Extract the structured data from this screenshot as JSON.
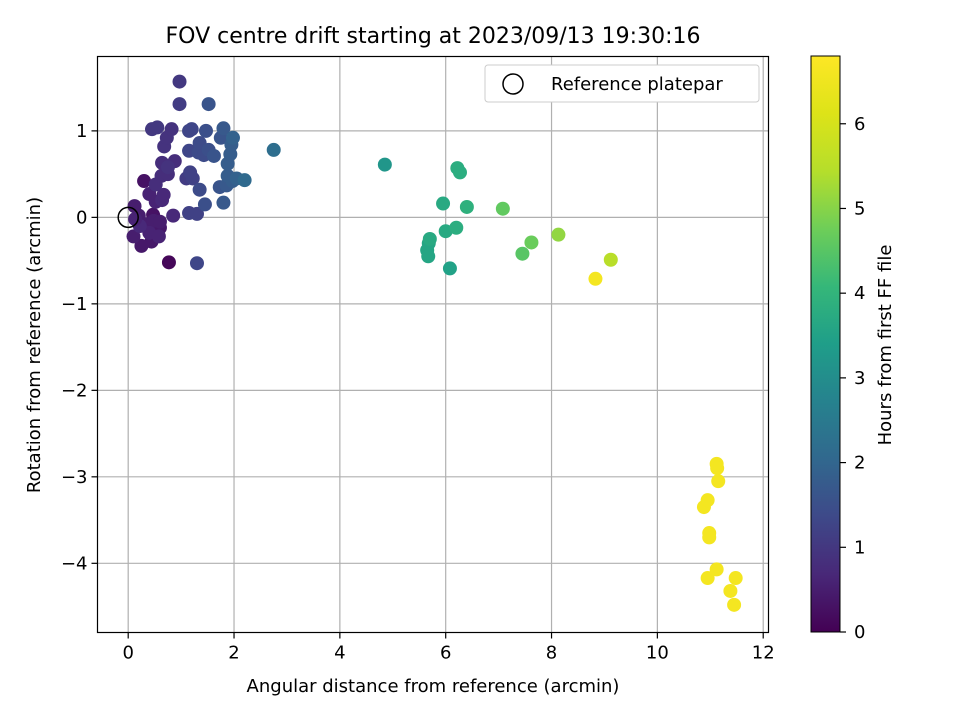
{
  "chart_data": {
    "type": "scatter",
    "title": "FOV centre drift starting at 2023/09/13 19:30:16",
    "xlabel": "Angular distance from reference (arcmin)",
    "ylabel": "Rotation from reference (arcmin)",
    "xlim": [
      -0.58,
      12.1
    ],
    "ylim": [
      -4.8,
      1.86
    ],
    "xticks": [
      0,
      2,
      4,
      6,
      8,
      10,
      12
    ],
    "yticks": [
      -4,
      -3,
      -2,
      -1,
      0,
      1
    ],
    "xtick_labels": [
      "0",
      "2",
      "4",
      "6",
      "8",
      "10",
      "12"
    ],
    "ytick_labels": [
      "−4",
      "−3",
      "−2",
      "−1",
      "0",
      "1"
    ],
    "grid": true,
    "colormap": "viridis",
    "colorbar": {
      "label": "Hours from first FF file",
      "range": [
        0,
        6.8
      ],
      "ticks": [
        0,
        1,
        2,
        3,
        4,
        5,
        6
      ],
      "tick_labels": [
        "0",
        "1",
        "2",
        "3",
        "4",
        "5",
        "6"
      ]
    },
    "legend": {
      "position": "top-right",
      "label": "Reference platepar"
    },
    "reference_point": {
      "x": 0,
      "y": 0
    },
    "series": [
      {
        "points": [
          [
            0.77,
            -0.52,
            0.1
          ],
          [
            0.3,
            0.42,
            0.3
          ],
          [
            0.47,
            0.03,
            0.3
          ],
          [
            0.55,
            -0.09,
            0.3
          ],
          [
            0.6,
            -0.12,
            0.4
          ],
          [
            0.44,
            -0.28,
            0.4
          ],
          [
            0.25,
            -0.33,
            0.4
          ],
          [
            0.1,
            -0.22,
            0.5
          ],
          [
            0.12,
            0.13,
            0.5
          ],
          [
            0.2,
            0.02,
            0.5
          ],
          [
            0.35,
            -0.08,
            0.5
          ],
          [
            0.48,
            -0.04,
            0.5
          ],
          [
            0.6,
            -0.05,
            0.5
          ],
          [
            0.4,
            0.27,
            0.6
          ],
          [
            0.52,
            0.18,
            0.6
          ],
          [
            0.4,
            -0.18,
            0.6
          ],
          [
            0.58,
            -0.22,
            0.6
          ],
          [
            0.22,
            -0.1,
            0.7
          ],
          [
            0.13,
            -0.02,
            0.6
          ],
          [
            0.64,
            0.2,
            0.7
          ],
          [
            0.85,
            0.02,
            0.7
          ],
          [
            0.67,
            0.26,
            0.7
          ],
          [
            0.52,
            0.38,
            0.8
          ],
          [
            0.63,
            0.48,
            0.8
          ],
          [
            0.64,
            0.63,
            0.8
          ],
          [
            0.75,
            0.5,
            0.8
          ],
          [
            0.88,
            0.65,
            0.8
          ],
          [
            0.75,
            0.58,
            0.9
          ],
          [
            0.68,
            0.82,
            0.9
          ],
          [
            0.73,
            0.92,
            0.9
          ],
          [
            0.82,
            1.02,
            0.9
          ],
          [
            0.55,
            1.04,
            1.0
          ],
          [
            0.45,
            1.02,
            1.0
          ],
          [
            0.97,
            1.57,
            1.0
          ],
          [
            0.97,
            1.31,
            1.1
          ],
          [
            1.1,
            0.45,
            1.1
          ],
          [
            1.15,
            0.05,
            1.2
          ],
          [
            1.3,
            0.04,
            1.2
          ],
          [
            1.22,
            0.45,
            1.2
          ],
          [
            1.17,
            0.52,
            1.2
          ],
          [
            1.15,
            0.77,
            1.3
          ],
          [
            1.15,
            1.0,
            1.3
          ],
          [
            1.2,
            1.02,
            1.3
          ],
          [
            1.3,
            -0.53,
            1.3
          ],
          [
            1.35,
            0.32,
            1.4
          ],
          [
            1.33,
            0.75,
            1.4
          ],
          [
            1.43,
            0.72,
            1.4
          ],
          [
            1.35,
            0.86,
            1.4
          ],
          [
            1.47,
            1.0,
            1.5
          ],
          [
            1.45,
            0.15,
            1.5
          ],
          [
            1.52,
            0.78,
            1.5
          ],
          [
            1.52,
            1.31,
            1.6
          ],
          [
            1.62,
            0.71,
            1.6
          ],
          [
            1.73,
            0.35,
            1.6
          ],
          [
            1.75,
            0.92,
            1.6
          ],
          [
            1.8,
            1.03,
            1.7
          ],
          [
            1.8,
            0.17,
            1.7
          ],
          [
            1.86,
            0.37,
            1.7
          ],
          [
            1.88,
            0.48,
            1.8
          ],
          [
            1.88,
            0.62,
            1.8
          ],
          [
            1.93,
            0.73,
            1.8
          ],
          [
            1.97,
            0.42,
            1.8
          ],
          [
            1.95,
            0.84,
            1.8
          ],
          [
            1.98,
            0.92,
            1.9
          ],
          [
            2.05,
            0.45,
            1.9
          ],
          [
            2.2,
            0.43,
            2.1
          ],
          [
            2.75,
            0.78,
            2.2
          ],
          [
            4.85,
            0.61,
            3.2
          ],
          [
            5.65,
            -0.38,
            3.6
          ],
          [
            5.68,
            -0.3,
            3.6
          ],
          [
            5.7,
            -0.25,
            3.7
          ],
          [
            5.67,
            -0.45,
            3.6
          ],
          [
            5.95,
            0.16,
            3.7
          ],
          [
            6.0,
            -0.16,
            3.7
          ],
          [
            6.08,
            -0.59,
            3.5
          ],
          [
            6.2,
            -0.12,
            3.8
          ],
          [
            6.22,
            0.57,
            3.8
          ],
          [
            6.27,
            0.52,
            3.8
          ],
          [
            6.4,
            0.12,
            3.9
          ],
          [
            7.08,
            0.1,
            4.6
          ],
          [
            7.45,
            -0.42,
            4.5
          ],
          [
            7.62,
            -0.29,
            4.7
          ],
          [
            8.13,
            -0.2,
            5.1
          ],
          [
            8.83,
            -0.71,
            6.6
          ],
          [
            9.12,
            -0.49,
            5.5
          ],
          [
            10.88,
            -3.35,
            6.6
          ],
          [
            10.95,
            -3.27,
            6.6
          ],
          [
            11.12,
            -2.85,
            6.6
          ],
          [
            11.13,
            -2.9,
            6.6
          ],
          [
            11.15,
            -3.05,
            6.6
          ],
          [
            10.98,
            -3.65,
            6.6
          ],
          [
            10.98,
            -3.7,
            6.6
          ],
          [
            11.12,
            -4.07,
            6.6
          ],
          [
            10.95,
            -4.17,
            6.6
          ],
          [
            11.38,
            -4.32,
            6.6
          ],
          [
            11.48,
            -4.17,
            6.6
          ],
          [
            11.45,
            -4.48,
            6.6
          ]
        ]
      }
    ]
  }
}
